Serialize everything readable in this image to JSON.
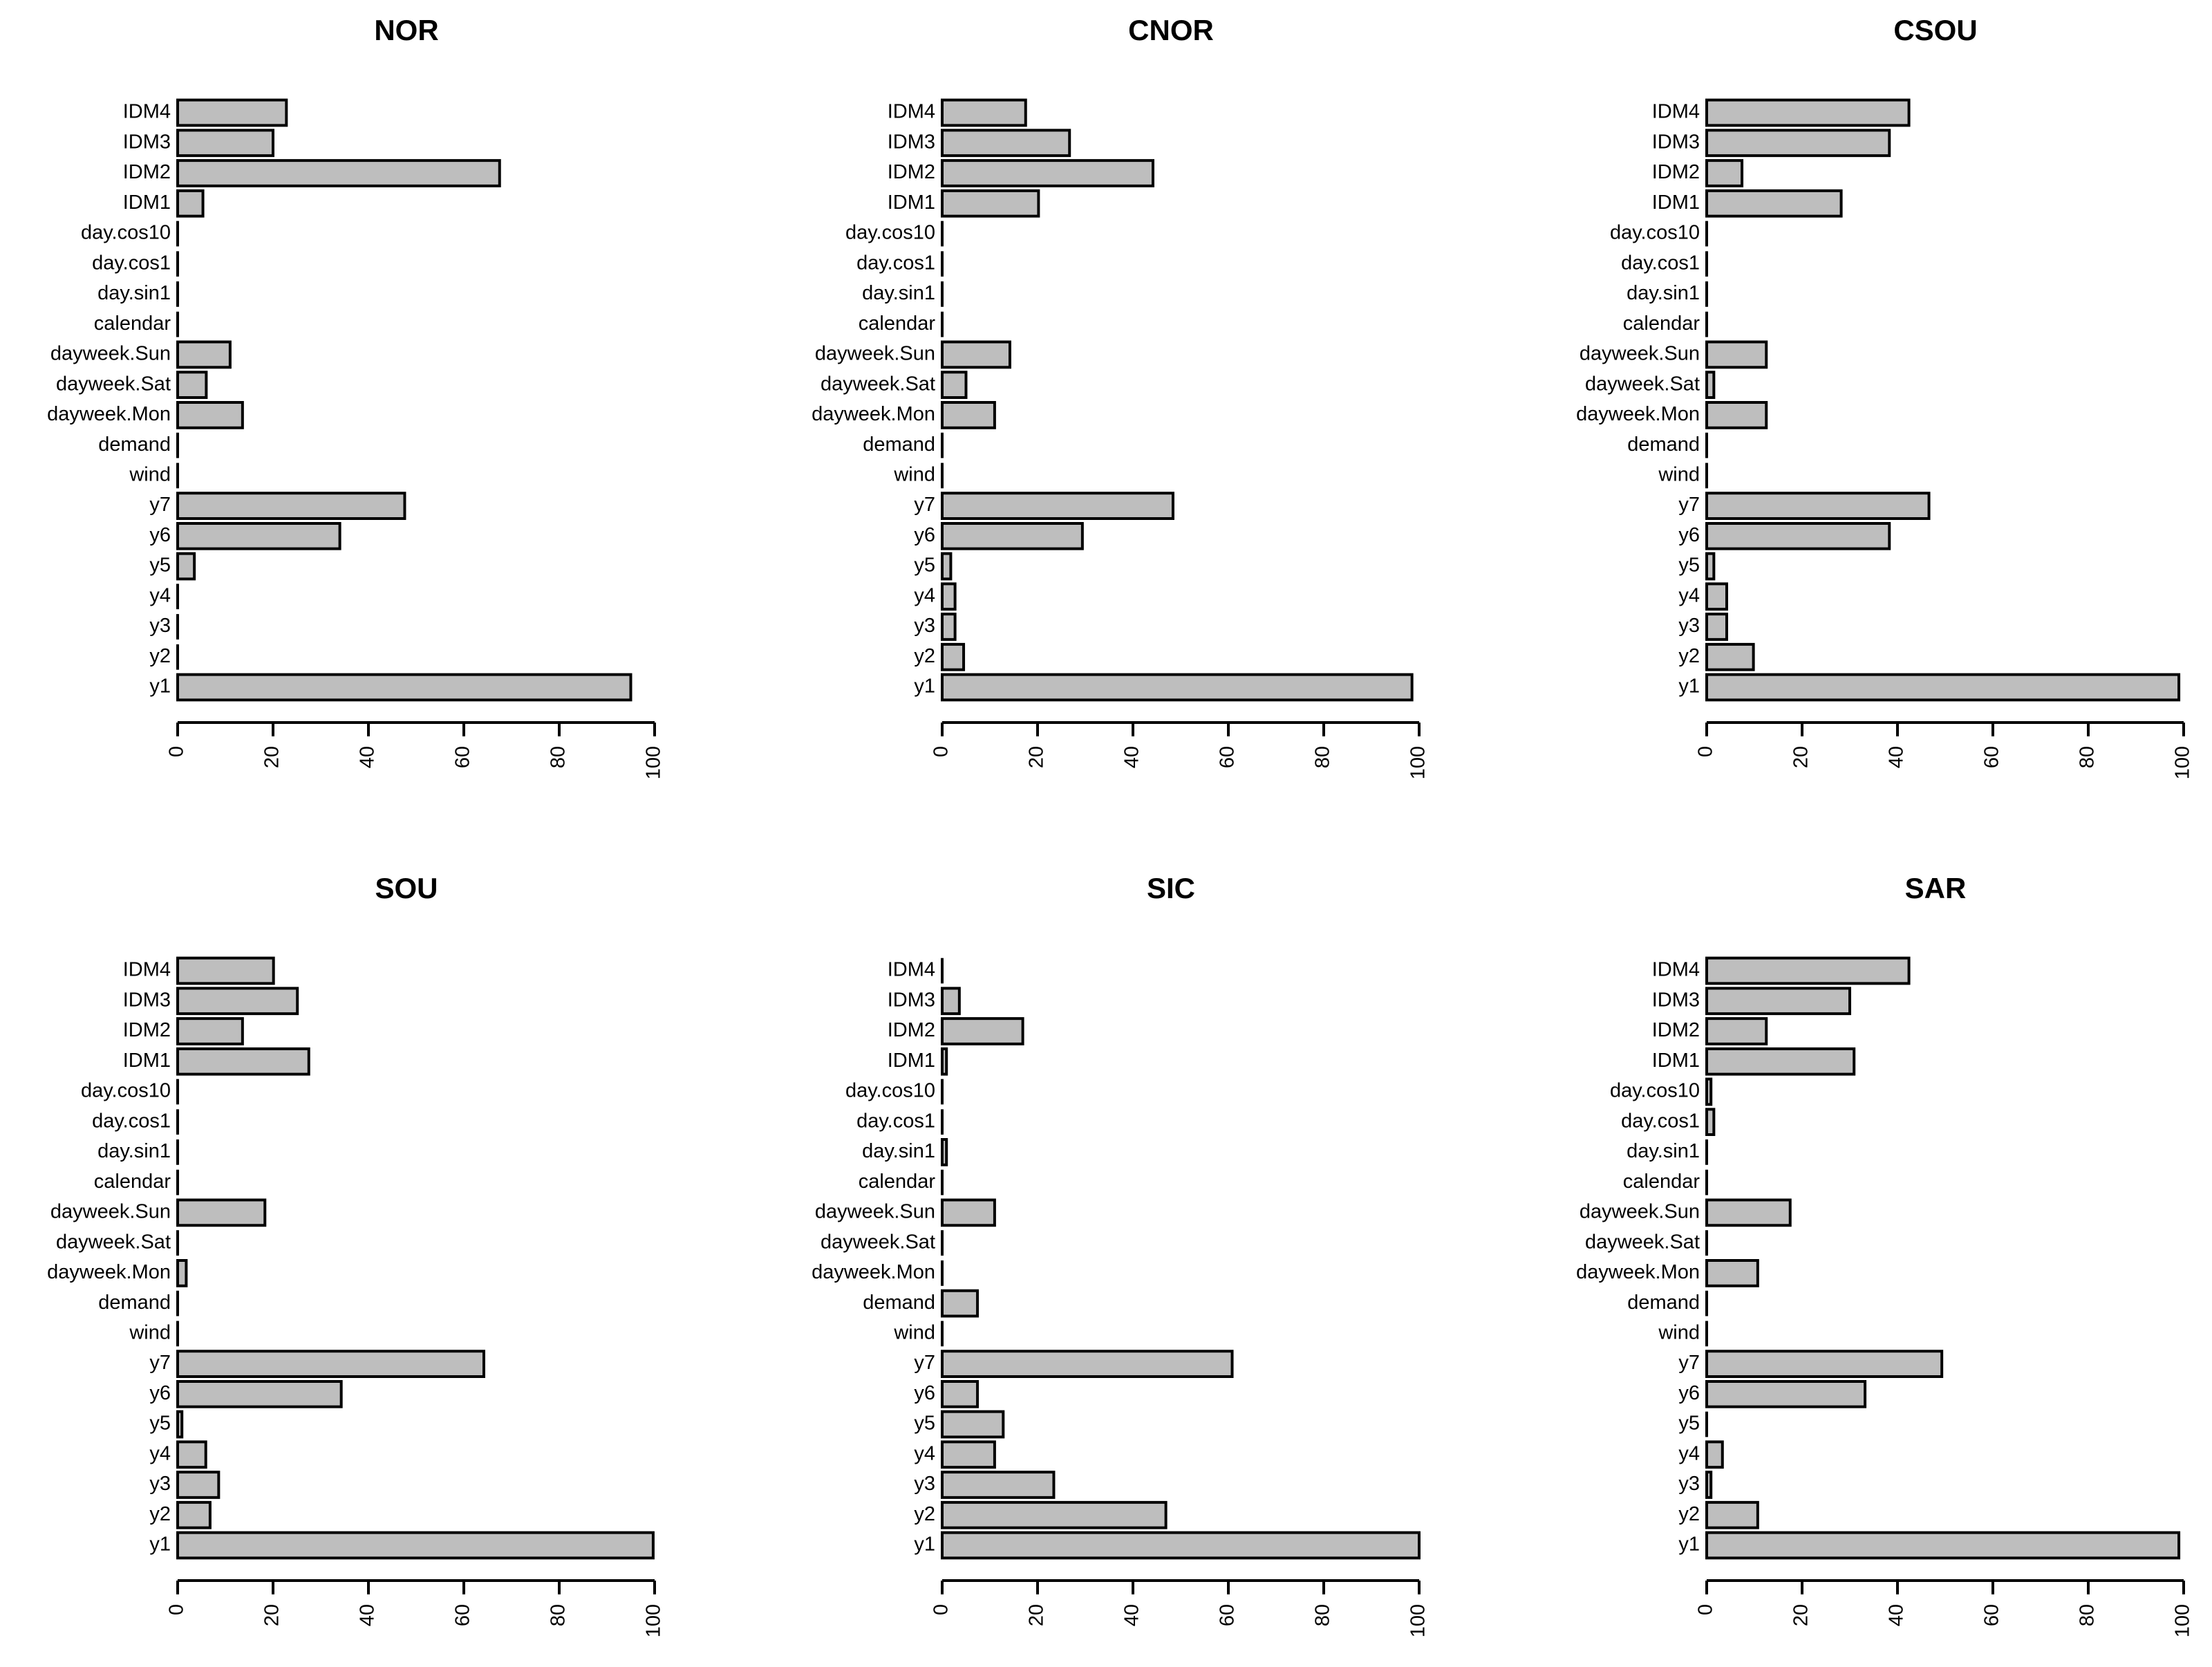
{
  "chart_data": [
    {
      "type": "bar",
      "orientation": "horizontal",
      "title": "NOR",
      "color": "#bebebe",
      "categories": [
        "y1",
        "y2",
        "y3",
        "y4",
        "y5",
        "y6",
        "y7",
        "wind",
        "demand",
        "dayweek.Mon",
        "dayweek.Sat",
        "dayweek.Sun",
        "calendar",
        "day.sin1",
        "day.cos1",
        "day.cos10",
        "IDM1",
        "IDM2",
        "IDM3",
        "IDM4"
      ],
      "values": [
        95,
        0,
        0,
        0,
        3.5,
        34,
        47.6,
        0,
        0,
        13.6,
        6,
        11,
        0,
        0,
        0,
        0,
        5.3,
        67.5,
        20,
        22.8
      ],
      "xlim": [
        0,
        100
      ],
      "xticks": [
        0,
        20,
        40,
        60,
        80,
        100
      ]
    },
    {
      "type": "bar",
      "orientation": "horizontal",
      "title": "CNOR",
      "color": "#bebebe",
      "categories": [
        "y1",
        "y2",
        "y3",
        "y4",
        "y5",
        "y6",
        "y7",
        "wind",
        "demand",
        "dayweek.Mon",
        "dayweek.Sat",
        "dayweek.Sun",
        "calendar",
        "day.sin1",
        "day.cos1",
        "day.cos10",
        "IDM1",
        "IDM2",
        "IDM3",
        "IDM4"
      ],
      "values": [
        98.5,
        4.5,
        2.7,
        2.7,
        1.8,
        29.4,
        48.4,
        0,
        0,
        11,
        5,
        14.2,
        0,
        0,
        0,
        0,
        20.2,
        44.2,
        26.7,
        17.5
      ],
      "xlim": [
        0,
        100
      ],
      "xticks": [
        0,
        20,
        40,
        60,
        80,
        100
      ]
    },
    {
      "type": "bar",
      "orientation": "horizontal",
      "title": "CSOU",
      "color": "#bebebe",
      "categories": [
        "y1",
        "y2",
        "y3",
        "y4",
        "y5",
        "y6",
        "y7",
        "wind",
        "demand",
        "dayweek.Mon",
        "dayweek.Sat",
        "dayweek.Sun",
        "calendar",
        "day.sin1",
        "day.cos1",
        "day.cos10",
        "IDM1",
        "IDM2",
        "IDM3",
        "IDM4"
      ],
      "values": [
        99,
        9.8,
        4.2,
        4.2,
        1.5,
        38.3,
        46.6,
        0,
        0,
        12.5,
        1.5,
        12.5,
        0,
        0,
        0,
        0,
        28.2,
        7.4,
        38.3,
        42.4
      ],
      "xlim": [
        0,
        100
      ],
      "xticks": [
        0,
        20,
        40,
        60,
        80,
        100
      ]
    },
    {
      "type": "bar",
      "orientation": "horizontal",
      "title": "SOU",
      "color": "#bebebe",
      "categories": [
        "y1",
        "y2",
        "y3",
        "y4",
        "y5",
        "y6",
        "y7",
        "wind",
        "demand",
        "dayweek.Mon",
        "dayweek.Sat",
        "dayweek.Sun",
        "calendar",
        "day.sin1",
        "day.cos1",
        "day.cos10",
        "IDM1",
        "IDM2",
        "IDM3",
        "IDM4"
      ],
      "values": [
        99.7,
        6.8,
        8.6,
        5.9,
        0.9,
        34.3,
        64.2,
        0,
        0,
        1.8,
        0,
        18.3,
        0,
        0,
        0,
        0,
        27.5,
        13.6,
        25.1,
        20.1
      ],
      "xlim": [
        0,
        100
      ],
      "xticks": [
        0,
        20,
        40,
        60,
        80,
        100
      ]
    },
    {
      "type": "bar",
      "orientation": "horizontal",
      "title": "SIC",
      "color": "#bebebe",
      "categories": [
        "y1",
        "y2",
        "y3",
        "y4",
        "y5",
        "y6",
        "y7",
        "wind",
        "demand",
        "dayweek.Mon",
        "dayweek.Sat",
        "dayweek.Sun",
        "calendar",
        "day.sin1",
        "day.cos1",
        "day.cos10",
        "IDM1",
        "IDM2",
        "IDM3",
        "IDM4"
      ],
      "values": [
        100,
        46.9,
        23.4,
        11,
        12.8,
        7.4,
        60.8,
        0,
        7.4,
        0,
        0,
        11,
        0,
        0.9,
        0,
        0,
        0.9,
        16.9,
        3.6,
        0
      ],
      "xlim": [
        0,
        100
      ],
      "xticks": [
        0,
        20,
        40,
        60,
        80,
        100
      ]
    },
    {
      "type": "bar",
      "orientation": "horizontal",
      "title": "SAR",
      "color": "#bebebe",
      "categories": [
        "y1",
        "y2",
        "y3",
        "y4",
        "y5",
        "y6",
        "y7",
        "wind",
        "demand",
        "dayweek.Mon",
        "dayweek.Sat",
        "dayweek.Sun",
        "calendar",
        "day.sin1",
        "day.cos1",
        "day.cos10",
        "IDM1",
        "IDM2",
        "IDM3",
        "IDM4"
      ],
      "values": [
        99,
        10.7,
        0.9,
        3.3,
        0,
        33.2,
        49.3,
        0,
        0,
        10.7,
        0,
        17.5,
        0,
        0,
        1.5,
        0.9,
        30.9,
        12.5,
        30,
        42.4
      ],
      "xlim": [
        0,
        100
      ],
      "xticks": [
        0,
        20,
        40,
        60,
        80,
        100
      ]
    }
  ]
}
